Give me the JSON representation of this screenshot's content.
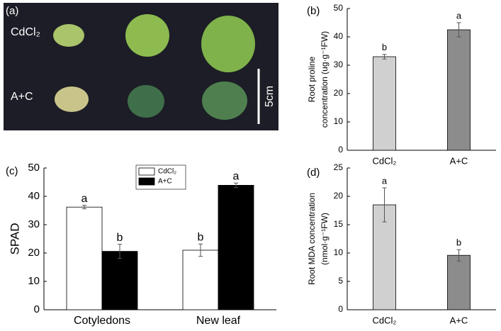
{
  "photo": {
    "label": "(a)",
    "rows": [
      "CdCl₂",
      "A+C"
    ],
    "scale": "5cm"
  },
  "chart_data": [
    {
      "type": "bar",
      "panel": "(b)",
      "ylabel": [
        "Root proline",
        "concentration (ug·g⁻¹FW)"
      ],
      "categories": [
        "CdCl₂",
        "A+C"
      ],
      "values": [
        33,
        42.5
      ],
      "errors": [
        0.8,
        2.5
      ],
      "letters": [
        "b",
        "a"
      ],
      "colors": [
        "#d0d0d0",
        "#8c8c8c"
      ],
      "ylim": [
        0,
        50
      ],
      "yticks": [
        0,
        10,
        20,
        30,
        40,
        50
      ]
    },
    {
      "type": "grouped-bar",
      "panel": "(c)",
      "ylabel": [
        "SPAD"
      ],
      "categories": [
        "Cotyledons",
        "New leaf"
      ],
      "series": [
        {
          "name": "CdCl₂",
          "color": "#ffffff",
          "values": [
            36.2,
            21.0
          ],
          "errors": [
            0.6,
            2.2
          ],
          "letters": [
            "a",
            "b"
          ]
        },
        {
          "name": "A+C",
          "color": "#000000",
          "values": [
            20.6,
            43.9
          ],
          "errors": [
            2.5,
            0.8
          ],
          "letters": [
            "b",
            "a"
          ]
        }
      ],
      "legend": "top",
      "ylim": [
        0,
        50
      ],
      "yticks": [
        0,
        10,
        20,
        30,
        40,
        50
      ]
    },
    {
      "type": "bar",
      "panel": "(d)",
      "ylabel": [
        "Root MDA concentration",
        "(nmol·g⁻¹FW)"
      ],
      "categories": [
        "CdCl₂",
        "A+C"
      ],
      "values": [
        18.5,
        9.6
      ],
      "errors": [
        3.0,
        1.0
      ],
      "letters": [
        "a",
        "b"
      ],
      "colors": [
        "#d0d0d0",
        "#8c8c8c"
      ],
      "ylim": [
        0,
        25
      ],
      "yticks": [
        0,
        5,
        10,
        15,
        20,
        25
      ]
    }
  ]
}
